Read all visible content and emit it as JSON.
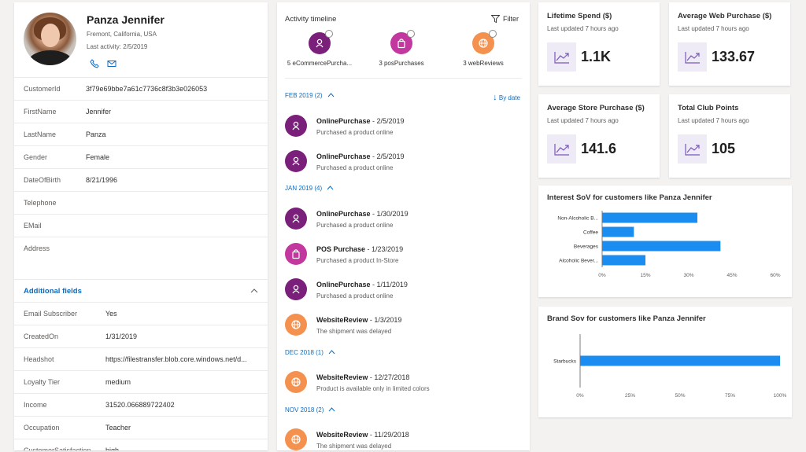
{
  "profile": {
    "name": "Panza Jennifer",
    "location": "Fremont, California, USA",
    "last_activity": "Last activity: 2/5/2019",
    "fields": [
      {
        "key": "CustomerId",
        "value": "3f79e69bbe7a61c7736c8f3b3e026053"
      },
      {
        "key": "FirstName",
        "value": "Jennifer"
      },
      {
        "key": "LastName",
        "value": "Panza"
      },
      {
        "key": "Gender",
        "value": "Female"
      },
      {
        "key": "DateOfBirth",
        "value": "8/21/1996"
      },
      {
        "key": "Telephone",
        "value": ""
      },
      {
        "key": "EMail",
        "value": ""
      },
      {
        "key": "Address",
        "value": ""
      }
    ],
    "additional_title": "Additional fields",
    "additional": [
      {
        "key": "Email Subscriber",
        "value": "Yes"
      },
      {
        "key": "CreatedOn",
        "value": "1/31/2019"
      },
      {
        "key": "Headshot",
        "value": "https://filestransfer.blob.core.windows.net/d..."
      },
      {
        "key": "Loyalty Tier",
        "value": "medium"
      },
      {
        "key": "Income",
        "value": "31520.066889722402"
      },
      {
        "key": "Occupation",
        "value": "Teacher"
      },
      {
        "key": "CustomerSatisfaction",
        "value": "high"
      }
    ]
  },
  "timeline": {
    "title": "Activity timeline",
    "filter_label": "Filter",
    "sort_label": "By date",
    "summary": [
      {
        "label": "5 eCommercePurcha...",
        "color": "#7a1f7a",
        "icon": "person-icon"
      },
      {
        "label": "3 posPurchases",
        "color": "#c3389e",
        "icon": "bag-icon"
      },
      {
        "label": "3 webReviews",
        "color": "#f5914e",
        "icon": "globe-icon"
      }
    ],
    "groups": [
      {
        "label": "FEB 2019 (2)"
      },
      {
        "label": "JAN 2019 (4)"
      },
      {
        "label": "DEC 2018 (1)"
      },
      {
        "label": "NOV 2018 (2)"
      }
    ],
    "events": [
      {
        "title": "OnlinePurchase",
        "date": " - 2/5/2019",
        "sub": "Purchased a product online",
        "type": "purple"
      },
      {
        "title": "OnlinePurchase",
        "date": " - 2/5/2019",
        "sub": "Purchased a product online",
        "type": "purple"
      },
      {
        "title": "OnlinePurchase",
        "date": " - 1/30/2019",
        "sub": "Purchased a product online",
        "type": "purple"
      },
      {
        "title": "POS Purchase",
        "date": " - 1/23/2019",
        "sub": "Purchased a product In-Store",
        "type": "pink"
      },
      {
        "title": "OnlinePurchase",
        "date": " - 1/11/2019",
        "sub": "Purchased a product online",
        "type": "purple"
      },
      {
        "title": "WebsiteReview",
        "date": " - 1/3/2019",
        "sub": "The shipment was delayed",
        "type": "orange"
      },
      {
        "title": "WebsiteReview",
        "date": " - 12/27/2018",
        "sub": "Product is available only in limited colors",
        "type": "orange"
      },
      {
        "title": "WebsiteReview",
        "date": " - 11/29/2018",
        "sub": "The shipment was delayed",
        "type": "orange"
      }
    ]
  },
  "kpis": [
    {
      "title": "Lifetime Spend ($)",
      "updated": "Last updated 7 hours ago",
      "value": "1.1K"
    },
    {
      "title": "Average Web Purchase ($)",
      "updated": "Last updated 7 hours ago",
      "value": "133.67"
    },
    {
      "title": "Average Store Purchase ($)",
      "updated": "Last updated 7 hours ago",
      "value": "141.6"
    },
    {
      "title": "Total Club Points",
      "updated": "Last updated 7 hours ago",
      "value": "105"
    }
  ],
  "chart_data": [
    {
      "type": "bar",
      "orientation": "horizontal",
      "title": "Interest SoV for customers like Panza Jennifer",
      "categories": [
        "Non-Alcoholic B...",
        "Coffee",
        "Beverages",
        "Alcoholic Bever..."
      ],
      "values": [
        33,
        11,
        41,
        15
      ],
      "xlim": [
        0,
        60
      ],
      "xticks": [
        "0%",
        "15%",
        "30%",
        "45%",
        "60%"
      ],
      "color": "#1b8cf0"
    },
    {
      "type": "bar",
      "orientation": "horizontal",
      "title": "Brand Sov for customers like Panza Jennifer",
      "categories": [
        "Starbucks"
      ],
      "values": [
        100
      ],
      "xlim": [
        0,
        100
      ],
      "xticks": [
        "0%",
        "25%",
        "50%",
        "75%",
        "100%"
      ],
      "color": "#1b8cf0"
    }
  ]
}
